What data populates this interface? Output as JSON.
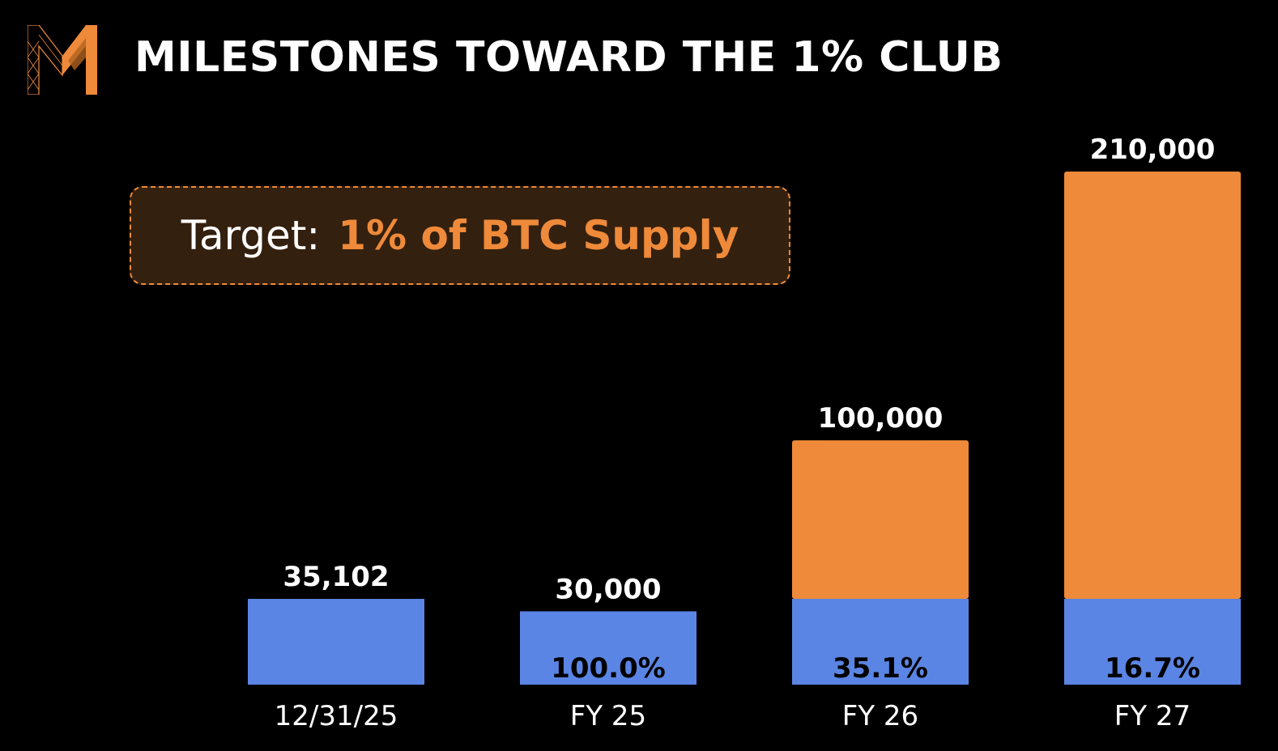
{
  "title": "MILESTONES TOWARD THE 1% CLUB",
  "logo": {
    "icon": "m-logo-icon",
    "colors": [
      "#ee8a3a"
    ]
  },
  "target": {
    "label": "Target:",
    "value": "1% of BTC Supply"
  },
  "colors": {
    "background": "#000000",
    "accent": "#ee8a3a",
    "base_bar": "#5b85e4",
    "target_box_fill": "#34200e"
  },
  "chart_data": {
    "type": "bar",
    "stacked": true,
    "categories": [
      "12/31/25",
      "FY 25",
      "FY 26",
      "FY 27"
    ],
    "totals": [
      35102,
      30000,
      100000,
      210000
    ],
    "total_labels": [
      "35,102",
      "30,000",
      "100,000",
      "210,000"
    ],
    "series": [
      {
        "values": [
          35102,
          30000,
          35102,
          35102
        ],
        "color": "#5b85e4"
      },
      {
        "values": [
          0,
          0,
          64898,
          174898
        ],
        "color": "#ee8a3a"
      }
    ],
    "percent_labels": [
      "",
      "100.0%",
      "35.1%",
      "16.7%"
    ],
    "ylim": [
      0,
      210000
    ],
    "grid": false,
    "legend": "none"
  }
}
